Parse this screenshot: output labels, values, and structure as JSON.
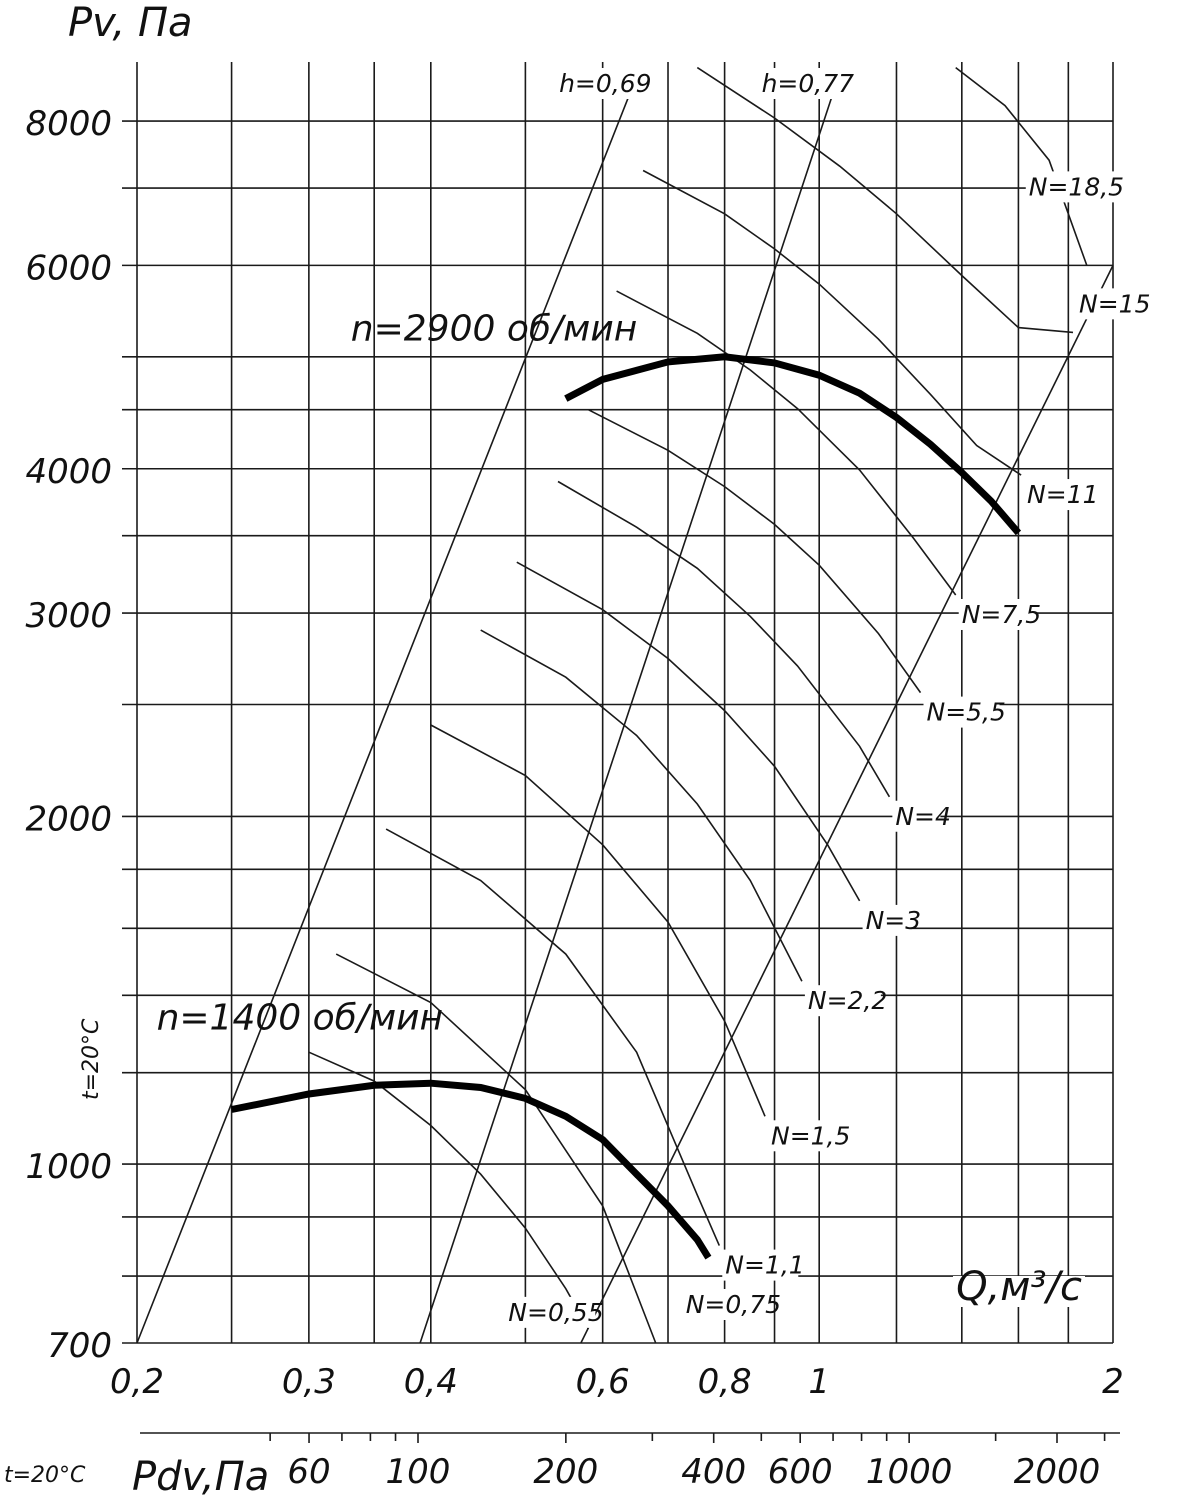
{
  "chart_data": {
    "type": "line",
    "title": "",
    "xlabel": "Q,м³/с",
    "ylabel": "Pv, Па",
    "x_scale": "log",
    "y_scale": "log",
    "xlim": [
      0.2,
      2
    ],
    "ylim": [
      700,
      9000
    ],
    "grid": true,
    "x_ticks": [
      0.2,
      0.3,
      0.4,
      0.6,
      0.8,
      1,
      2
    ],
    "x_tick_labels": [
      "0,2",
      "0,3",
      "0,4",
      "0,6",
      "0,8",
      "1",
      "2"
    ],
    "x_grid": [
      0.2,
      0.25,
      0.3,
      0.35,
      0.4,
      0.5,
      0.6,
      0.7,
      0.8,
      0.9,
      1,
      1.2,
      1.4,
      1.6,
      1.8,
      2
    ],
    "y_ticks": [
      700,
      1000,
      2000,
      3000,
      4000,
      6000,
      8000
    ],
    "y_tick_labels": [
      "700",
      "1000",
      "2000",
      "3000",
      "4000",
      "6000",
      "8000"
    ],
    "y_grid": [
      700,
      800,
      900,
      1000,
      1200,
      1400,
      1600,
      1800,
      2000,
      2500,
      3000,
      3500,
      4000,
      4500,
      5000,
      6000,
      7000,
      8000
    ],
    "secondary_x_axis": {
      "label": "Pdv,Па",
      "ticks": [
        60,
        100,
        200,
        400,
        600,
        1000,
        2000
      ],
      "tick_labels": [
        "60",
        "100",
        "200",
        "400",
        "600",
        "1000",
        "2000"
      ],
      "minor_ticks": [
        50,
        70,
        80,
        90,
        300,
        500,
        700,
        800,
        900,
        1500,
        2500
      ]
    },
    "temperature_label": "t=20°C",
    "series": [
      {
        "name": "n=2900 об/мин",
        "style": "bold",
        "x": [
          0.55,
          0.6,
          0.7,
          0.8,
          0.9,
          1.0,
          1.1,
          1.2,
          1.3,
          1.4,
          1.5,
          1.6
        ],
        "y": [
          4600,
          4780,
          4950,
          5000,
          4940,
          4820,
          4650,
          4430,
          4200,
          3970,
          3750,
          3520
        ]
      },
      {
        "name": "n=1400 об/мин",
        "style": "bold",
        "x": [
          0.25,
          0.3,
          0.35,
          0.4,
          0.45,
          0.5,
          0.55,
          0.6,
          0.65,
          0.7,
          0.75,
          0.77
        ],
        "y": [
          1115,
          1150,
          1170,
          1175,
          1165,
          1140,
          1100,
          1050,
          980,
          920,
          860,
          830
        ]
      }
    ],
    "efficiency_lines": [
      {
        "label": "h=0,69",
        "x": [
          0.2,
          0.645
        ],
        "y": [
          700,
          8600
        ]
      },
      {
        "label": "h=0,77",
        "x": [
          0.39,
          1.04
        ],
        "y": [
          700,
          8600
        ]
      },
      {
        "label": "",
        "x": [
          0.57,
          2.0
        ],
        "y": [
          700,
          6000
        ]
      }
    ],
    "power_curves": [
      {
        "label": "N=0,55",
        "x": [
          0.3,
          0.35,
          0.4,
          0.45,
          0.5,
          0.55,
          0.58
        ],
        "y": [
          1250,
          1180,
          1080,
          980,
          880,
          780,
          720
        ]
      },
      {
        "label": "N=0,75",
        "x": [
          0.32,
          0.4,
          0.5,
          0.6,
          0.68
        ],
        "y": [
          1520,
          1380,
          1160,
          920,
          700
        ]
      },
      {
        "label": "N=1,1",
        "x": [
          0.36,
          0.45,
          0.55,
          0.65,
          0.75,
          0.79
        ],
        "y": [
          1950,
          1760,
          1520,
          1250,
          940,
          850
        ]
      },
      {
        "label": "N=1,5",
        "x": [
          0.4,
          0.5,
          0.6,
          0.7,
          0.8,
          0.88
        ],
        "y": [
          2400,
          2170,
          1890,
          1620,
          1330,
          1100
        ]
      },
      {
        "label": "N=2,2",
        "x": [
          0.45,
          0.55,
          0.65,
          0.75,
          0.85,
          0.96
        ],
        "y": [
          2900,
          2640,
          2350,
          2050,
          1760,
          1440
        ]
      },
      {
        "label": "N=3",
        "x": [
          0.49,
          0.6,
          0.7,
          0.8,
          0.9,
          1.02,
          1.1
        ],
        "y": [
          3320,
          3020,
          2740,
          2470,
          2210,
          1890,
          1690
        ]
      },
      {
        "label": "N=4",
        "x": [
          0.54,
          0.65,
          0.75,
          0.85,
          0.95,
          1.1,
          1.18
        ],
        "y": [
          3900,
          3560,
          3280,
          2980,
          2700,
          2300,
          2080
        ]
      },
      {
        "label": "N=5,5",
        "x": [
          0.58,
          0.7,
          0.8,
          0.9,
          1.0,
          1.15,
          1.27
        ],
        "y": [
          4500,
          4150,
          3860,
          3580,
          3300,
          2880,
          2560
        ]
      },
      {
        "label": "N=7,5",
        "x": [
          0.62,
          0.75,
          0.85,
          0.95,
          1.1,
          1.25,
          1.38
        ],
        "y": [
          5700,
          5240,
          4870,
          4510,
          3990,
          3480,
          3110
        ]
      },
      {
        "label": "N=11",
        "x": [
          0.66,
          0.8,
          0.9,
          1.0,
          1.15,
          1.3,
          1.45,
          1.61
        ],
        "y": [
          7250,
          6650,
          6200,
          5780,
          5180,
          4640,
          4190,
          3950
        ]
      },
      {
        "label": "N=15",
        "x": [
          0.75,
          0.9,
          1.05,
          1.2,
          1.4,
          1.6,
          1.82
        ],
        "y": [
          8900,
          8050,
          7310,
          6650,
          5880,
          5300,
          5250
        ]
      },
      {
        "label": "N=18,5",
        "x": [
          1.38,
          1.55,
          1.72,
          1.88
        ],
        "y": [
          8900,
          8250,
          7400,
          6000
        ]
      }
    ]
  }
}
